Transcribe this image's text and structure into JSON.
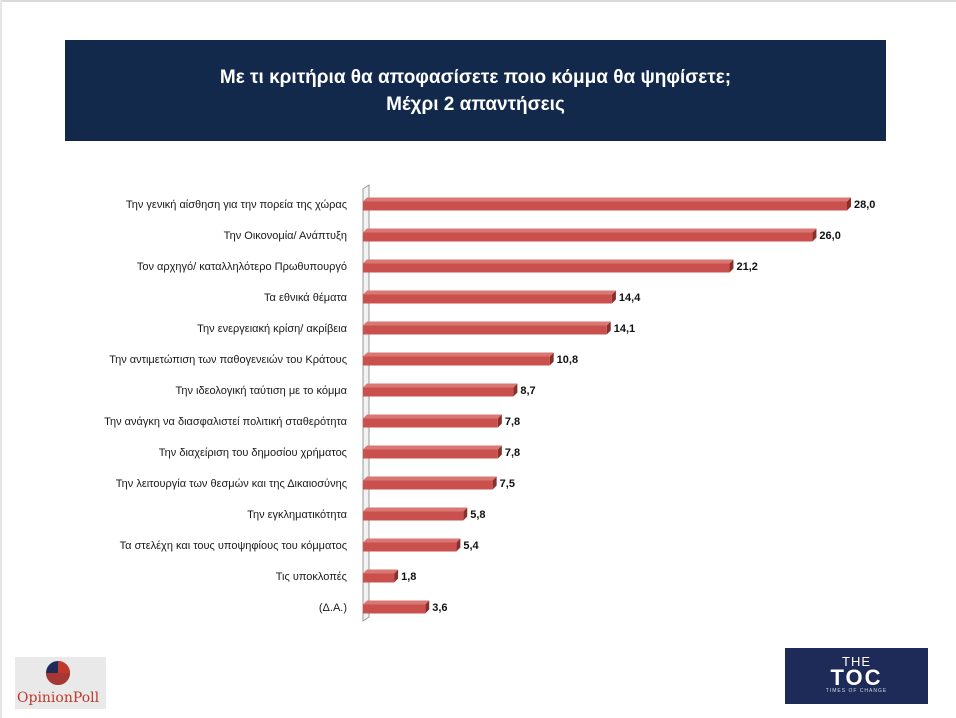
{
  "title": {
    "line1": "Με τι κριτήρια θα αποφασίσετε ποιο κόμμα θα ψηφίσετε;",
    "line2": "Μέχρι 2 απαντήσεις"
  },
  "chart_data": {
    "type": "bar",
    "orientation": "horizontal",
    "categories": [
      "Την γενική αίσθηση για την πορεία της χώρας",
      "Την Οικονομία/ Ανάπτυξη",
      "Τον αρχηγό/ καταλληλότερο Πρωθυπουργό",
      "Τα εθνικά θέματα",
      "Την ενεργειακή κρίση/ ακρίβεια",
      "Την αντιμετώπιση των παθογενειών του Κράτους",
      "Την ιδεολογική ταύτιση με το κόμμα",
      "Την ανάγκη να διασφαλιστεί πολιτική σταθερότητα",
      "Την διαχείριση του δημοσίου χρήματος",
      "Την λειτουργία των θεσμών και της Δικαιοσύνης",
      "Την εγκληματικότητα",
      "Τα στελέχη και τους υποψηφίους του κόμματος",
      "Τις υποκλοπές",
      "(Δ.Α.)"
    ],
    "values": [
      28.0,
      26.0,
      21.2,
      14.4,
      14.1,
      10.8,
      8.7,
      7.8,
      7.8,
      7.5,
      5.8,
      5.4,
      1.8,
      3.6
    ],
    "value_labels": [
      "28,0",
      "26,0",
      "21,2",
      "14,4",
      "14,1",
      "10,8",
      "8,7",
      "7,8",
      "7,8",
      "7,5",
      "5,8",
      "5,4",
      "1,8",
      "3,6"
    ],
    "xlim": [
      0,
      28
    ],
    "grid": false,
    "legend": "none",
    "bar_color": "#c9504d",
    "bar_shadow_color": "#8a2f2c"
  },
  "logos": {
    "left": "OpinionPoll",
    "right_top": "THE",
    "right_main": "TOC",
    "right_tag": "TIMES OF CHANGE"
  },
  "colors": {
    "title_bg": "#13294b",
    "toc_bg": "#1e2b58",
    "opinion_red": "#c0392b"
  }
}
